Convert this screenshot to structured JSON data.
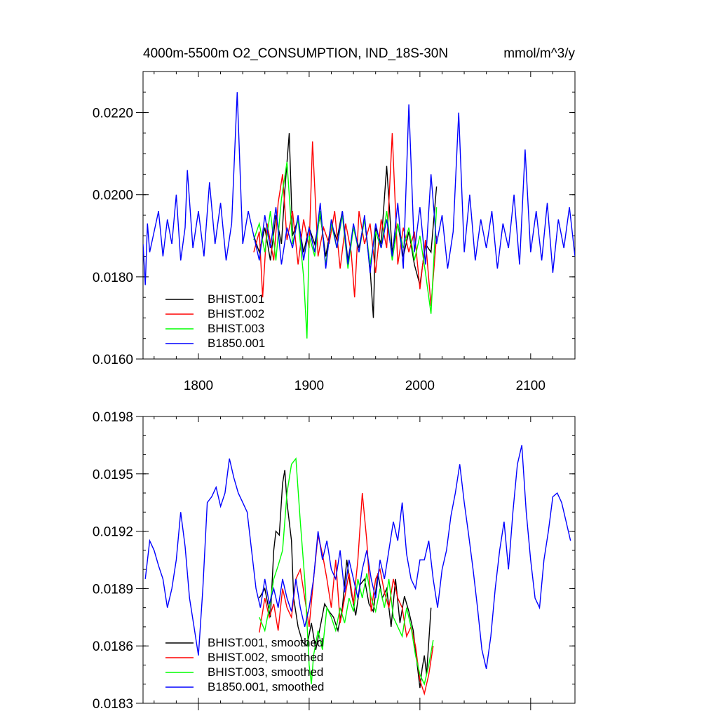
{
  "title_left": "4000m-5500m O2_CONSUMPTION, IND_18S-30N",
  "title_right": "mmol/m^3/y",
  "colors": {
    "BHIST.001": "#000000",
    "BHIST.002": "#ff0000",
    "BHIST.003": "#00ff00",
    "B1850.001": "#0000ff"
  },
  "chart_data": [
    {
      "type": "line",
      "title": "4000m-5500m O2_CONSUMPTION, IND_18S-30N",
      "units": "mmol/m^3/y",
      "xlim": [
        1750,
        2140
      ],
      "ylim": [
        0.016,
        0.023
      ],
      "xticks": [
        1800,
        1900,
        2000,
        2100
      ],
      "xtick_labels": [
        "1800",
        "1900",
        "2000",
        "2100"
      ],
      "yticks": [
        0.016,
        0.018,
        0.02,
        0.022
      ],
      "ytick_labels": [
        "0.0160",
        "0.0180",
        "0.0200",
        "0.0220"
      ],
      "grid": false,
      "legend_position": "bottom-left",
      "series": [
        {
          "name": "BHIST.001",
          "color": "#000000",
          "x": [
            1850,
            1855,
            1860,
            1865,
            1870,
            1875,
            1878,
            1882,
            1885,
            1890,
            1895,
            1900,
            1905,
            1910,
            1915,
            1920,
            1925,
            1930,
            1935,
            1940,
            1945,
            1950,
            1955,
            1958,
            1960,
            1965,
            1970,
            1975,
            1980,
            1985,
            1990,
            1995,
            2000,
            2005,
            2010,
            2015
          ],
          "y": [
            0.019,
            0.0186,
            0.0192,
            0.0184,
            0.0195,
            0.0188,
            0.0201,
            0.0215,
            0.019,
            0.0194,
            0.0186,
            0.0192,
            0.0188,
            0.0195,
            0.0185,
            0.0193,
            0.0189,
            0.0196,
            0.0184,
            0.0192,
            0.0187,
            0.0194,
            0.0182,
            0.017,
            0.0192,
            0.0188,
            0.0207,
            0.0186,
            0.0193,
            0.0185,
            0.0191,
            0.0183,
            0.0178,
            0.0188,
            0.0186,
            0.0202
          ]
        },
        {
          "name": "BHIST.002",
          "color": "#ff0000",
          "x": [
            1850,
            1855,
            1858,
            1862,
            1868,
            1872,
            1876,
            1880,
            1885,
            1890,
            1895,
            1900,
            1903,
            1908,
            1913,
            1918,
            1923,
            1928,
            1933,
            1938,
            1941,
            1945,
            1950,
            1955,
            1960,
            1965,
            1970,
            1975,
            1980,
            1985,
            1990,
            1995,
            2000,
            2005,
            2010,
            2015
          ],
          "y": [
            0.0186,
            0.0191,
            0.0175,
            0.0193,
            0.0184,
            0.0198,
            0.0205,
            0.0189,
            0.0196,
            0.0183,
            0.0194,
            0.0187,
            0.0213,
            0.0185,
            0.0192,
            0.0188,
            0.0196,
            0.0182,
            0.0193,
            0.0186,
            0.0175,
            0.0196,
            0.0188,
            0.0193,
            0.0181,
            0.0194,
            0.0187,
            0.0215,
            0.0183,
            0.0192,
            0.0186,
            0.0191,
            0.0177,
            0.0189,
            0.0173,
            0.019
          ]
        },
        {
          "name": "BHIST.003",
          "color": "#00ff00",
          "x": [
            1850,
            1855,
            1860,
            1865,
            1870,
            1875,
            1880,
            1885,
            1890,
            1895,
            1898,
            1900,
            1905,
            1910,
            1915,
            1920,
            1925,
            1930,
            1935,
            1940,
            1945,
            1950,
            1955,
            1960,
            1965,
            1970,
            1975,
            1980,
            1985,
            1990,
            1995,
            2000,
            2005,
            2010,
            2015
          ],
          "y": [
            0.0189,
            0.0193,
            0.0186,
            0.0196,
            0.0184,
            0.0199,
            0.0208,
            0.0188,
            0.0194,
            0.018,
            0.0165,
            0.019,
            0.0185,
            0.0196,
            0.0183,
            0.0193,
            0.0187,
            0.0195,
            0.0182,
            0.0192,
            0.0186,
            0.0194,
            0.0183,
            0.0191,
            0.0187,
            0.0196,
            0.0184,
            0.0193,
            0.0187,
            0.0192,
            0.0184,
            0.019,
            0.0181,
            0.0171,
            0.0197
          ]
        },
        {
          "name": "B1850.001",
          "color": "#0000ff",
          "x": [
            1750,
            1752,
            1754,
            1756,
            1760,
            1764,
            1768,
            1772,
            1776,
            1780,
            1784,
            1788,
            1790,
            1795,
            1800,
            1805,
            1810,
            1815,
            1820,
            1825,
            1830,
            1835,
            1840,
            1845,
            1850,
            1855,
            1860,
            1865,
            1870,
            1875,
            1880,
            1885,
            1890,
            1895,
            1900,
            1905,
            1910,
            1915,
            1920,
            1925,
            1930,
            1935,
            1940,
            1945,
            1950,
            1955,
            1960,
            1965,
            1970,
            1975,
            1980,
            1985,
            1990,
            1995,
            2000,
            2005,
            2010,
            2015,
            2020,
            2025,
            2030,
            2035,
            2040,
            2045,
            2050,
            2055,
            2060,
            2065,
            2070,
            2075,
            2080,
            2085,
            2090,
            2095,
            2100,
            2105,
            2110,
            2115,
            2120,
            2125,
            2130,
            2135,
            2140
          ],
          "y": [
            0.0188,
            0.0178,
            0.0193,
            0.0186,
            0.0191,
            0.0196,
            0.0185,
            0.0194,
            0.0188,
            0.02,
            0.0184,
            0.0192,
            0.0206,
            0.0187,
            0.0196,
            0.0185,
            0.0203,
            0.0188,
            0.0198,
            0.0184,
            0.0193,
            0.0225,
            0.0188,
            0.0196,
            0.019,
            0.0184,
            0.0195,
            0.0187,
            0.0197,
            0.0183,
            0.0192,
            0.0187,
            0.0195,
            0.0184,
            0.0192,
            0.0186,
            0.0198,
            0.0182,
            0.0194,
            0.0187,
            0.0196,
            0.0183,
            0.0193,
            0.0186,
            0.0195,
            0.0181,
            0.0193,
            0.0187,
            0.0194,
            0.0185,
            0.0198,
            0.0182,
            0.0222,
            0.0186,
            0.0197,
            0.0183,
            0.0205,
            0.0188,
            0.0195,
            0.0182,
            0.0191,
            0.022,
            0.0186,
            0.02,
            0.0184,
            0.0194,
            0.0187,
            0.0196,
            0.0182,
            0.0193,
            0.0187,
            0.02,
            0.0183,
            0.0211,
            0.0186,
            0.0196,
            0.0184,
            0.0198,
            0.0181,
            0.0194,
            0.0187,
            0.0197,
            0.0185
          ]
        }
      ]
    },
    {
      "type": "line",
      "xlim": [
        1750,
        2140
      ],
      "ylim": [
        0.0183,
        0.0198
      ],
      "xticks": [
        1800,
        1900,
        2000,
        2100
      ],
      "xtick_labels": [
        "",
        "",
        "",
        ""
      ],
      "yticks": [
        0.0183,
        0.0186,
        0.0189,
        0.0192,
        0.0195,
        0.0198
      ],
      "ytick_labels": [
        "0.0183",
        "0.0186",
        "0.0189",
        "0.0192",
        "0.0195",
        "0.0198"
      ],
      "grid": false,
      "legend_position": "bottom-left",
      "series": [
        {
          "name": "BHIST.001, smoothed",
          "color": "#000000",
          "x": [
            1855,
            1860,
            1865,
            1868,
            1870,
            1873,
            1876,
            1878,
            1880,
            1884,
            1886,
            1890,
            1894,
            1898,
            1902,
            1906,
            1910,
            1914,
            1918,
            1922,
            1926,
            1930,
            1934,
            1938,
            1942,
            1946,
            1950,
            1954,
            1958,
            1962,
            1966,
            1970,
            1974,
            1978,
            1982,
            1986,
            1990,
            1994,
            1998,
            2000,
            2002,
            2004,
            2006,
            2008,
            2010
          ],
          "y": [
            0.01885,
            0.0189,
            0.01875,
            0.0191,
            0.0192,
            0.01918,
            0.01945,
            0.01952,
            0.01935,
            0.01915,
            0.01885,
            0.0187,
            0.01862,
            0.0186,
            0.01872,
            0.01858,
            0.0187,
            0.01882,
            0.01878,
            0.01875,
            0.01868,
            0.0188,
            0.01905,
            0.01888,
            0.01876,
            0.01892,
            0.01895,
            0.01882,
            0.01878,
            0.01898,
            0.01885,
            0.0189,
            0.0187,
            0.01895,
            0.01872,
            0.01886,
            0.01878,
            0.01868,
            0.01848,
            0.01838,
            0.01848,
            0.01855,
            0.01845,
            0.01862,
            0.0188
          ]
        },
        {
          "name": "BHIST.002, smoothed",
          "color": "#ff0000",
          "x": [
            1855,
            1860,
            1864,
            1868,
            1872,
            1876,
            1880,
            1884,
            1888,
            1892,
            1896,
            1900,
            1904,
            1908,
            1912,
            1916,
            1920,
            1924,
            1928,
            1932,
            1936,
            1940,
            1944,
            1948,
            1952,
            1956,
            1960,
            1964,
            1968,
            1972,
            1976,
            1980,
            1984,
            1988,
            1992,
            1996,
            2000,
            2004,
            2008,
            2012
          ],
          "y": [
            0.01867,
            0.01885,
            0.01875,
            0.01882,
            0.01868,
            0.0189,
            0.0188,
            0.01875,
            0.01895,
            0.019,
            0.01885,
            0.0187,
            0.01895,
            0.01918,
            0.01908,
            0.01895,
            0.0188,
            0.01905,
            0.01872,
            0.01885,
            0.01898,
            0.01882,
            0.01905,
            0.0194,
            0.01915,
            0.01878,
            0.01895,
            0.019,
            0.01888,
            0.0188,
            0.01895,
            0.01885,
            0.0188,
            0.01865,
            0.0187,
            0.0186,
            0.01842,
            0.01835,
            0.01845,
            0.0186
          ]
        },
        {
          "name": "BHIST.003, smoothed",
          "color": "#00ff00",
          "x": [
            1855,
            1860,
            1864,
            1868,
            1872,
            1876,
            1880,
            1884,
            1888,
            1892,
            1896,
            1900,
            1902,
            1904,
            1908,
            1912,
            1916,
            1920,
            1924,
            1928,
            1932,
            1936,
            1940,
            1944,
            1948,
            1952,
            1956,
            1960,
            1964,
            1968,
            1972,
            1976,
            1980,
            1984,
            1988,
            1992,
            1996,
            2000,
            2004,
            2008,
            2012
          ],
          "y": [
            0.01875,
            0.01868,
            0.0188,
            0.01895,
            0.01902,
            0.0191,
            0.0194,
            0.01955,
            0.01958,
            0.01925,
            0.01895,
            0.0185,
            0.0184,
            0.01855,
            0.01868,
            0.01858,
            0.0188,
            0.01875,
            0.01868,
            0.0188,
            0.01872,
            0.01885,
            0.01878,
            0.01895,
            0.01885,
            0.01898,
            0.01885,
            0.01878,
            0.0189,
            0.0188,
            0.01895,
            0.01875,
            0.0187,
            0.01865,
            0.0188,
            0.0187,
            0.01855,
            0.01845,
            0.0184,
            0.0185,
            0.01863
          ]
        },
        {
          "name": "B1850.001, smoothed",
          "color": "#0000ff",
          "x": [
            1752,
            1756,
            1760,
            1764,
            1768,
            1772,
            1776,
            1780,
            1784,
            1788,
            1792,
            1796,
            1800,
            1804,
            1808,
            1812,
            1816,
            1820,
            1824,
            1828,
            1832,
            1836,
            1840,
            1844,
            1848,
            1852,
            1856,
            1860,
            1864,
            1868,
            1872,
            1876,
            1880,
            1884,
            1888,
            1892,
            1896,
            1900,
            1904,
            1908,
            1912,
            1916,
            1920,
            1924,
            1928,
            1932,
            1936,
            1940,
            1944,
            1948,
            1952,
            1956,
            1960,
            1964,
            1968,
            1972,
            1976,
            1980,
            1984,
            1988,
            1992,
            1996,
            2000,
            2004,
            2008,
            2012,
            2016,
            2020,
            2024,
            2028,
            2032,
            2036,
            2040,
            2044,
            2048,
            2052,
            2056,
            2060,
            2064,
            2068,
            2072,
            2076,
            2080,
            2084,
            2088,
            2092,
            2096,
            2100,
            2104,
            2108,
            2112,
            2116,
            2120,
            2124,
            2128,
            2132,
            2136
          ],
          "y": [
            0.01895,
            0.01915,
            0.0191,
            0.01902,
            0.01895,
            0.0188,
            0.0189,
            0.01905,
            0.0193,
            0.01912,
            0.01885,
            0.0187,
            0.01855,
            0.0189,
            0.01935,
            0.01938,
            0.01943,
            0.01933,
            0.0194,
            0.01958,
            0.01948,
            0.0194,
            0.01935,
            0.0193,
            0.0191,
            0.0189,
            0.0188,
            0.01895,
            0.01882,
            0.0189,
            0.0188,
            0.01895,
            0.01885,
            0.01878,
            0.01895,
            0.0188,
            0.0187,
            0.0188,
            0.01895,
            0.0192,
            0.01905,
            0.01915,
            0.019,
            0.01895,
            0.0191,
            0.01888,
            0.01905,
            0.01895,
            0.01885,
            0.019,
            0.0191,
            0.01895,
            0.01885,
            0.01905,
            0.01895,
            0.0191,
            0.01925,
            0.01915,
            0.01935,
            0.01908,
            0.01895,
            0.0189,
            0.01905,
            0.01905,
            0.01915,
            0.01895,
            0.0188,
            0.019,
            0.0191,
            0.01928,
            0.0194,
            0.01955,
            0.01935,
            0.01918,
            0.019,
            0.0188,
            0.01858,
            0.01848,
            0.01865,
            0.0189,
            0.0191,
            0.01925,
            0.019,
            0.0193,
            0.01955,
            0.01965,
            0.0193,
            0.01905,
            0.01885,
            0.0188,
            0.01905,
            0.0192,
            0.01938,
            0.0194,
            0.01935,
            0.01925,
            0.01915
          ]
        }
      ]
    }
  ]
}
